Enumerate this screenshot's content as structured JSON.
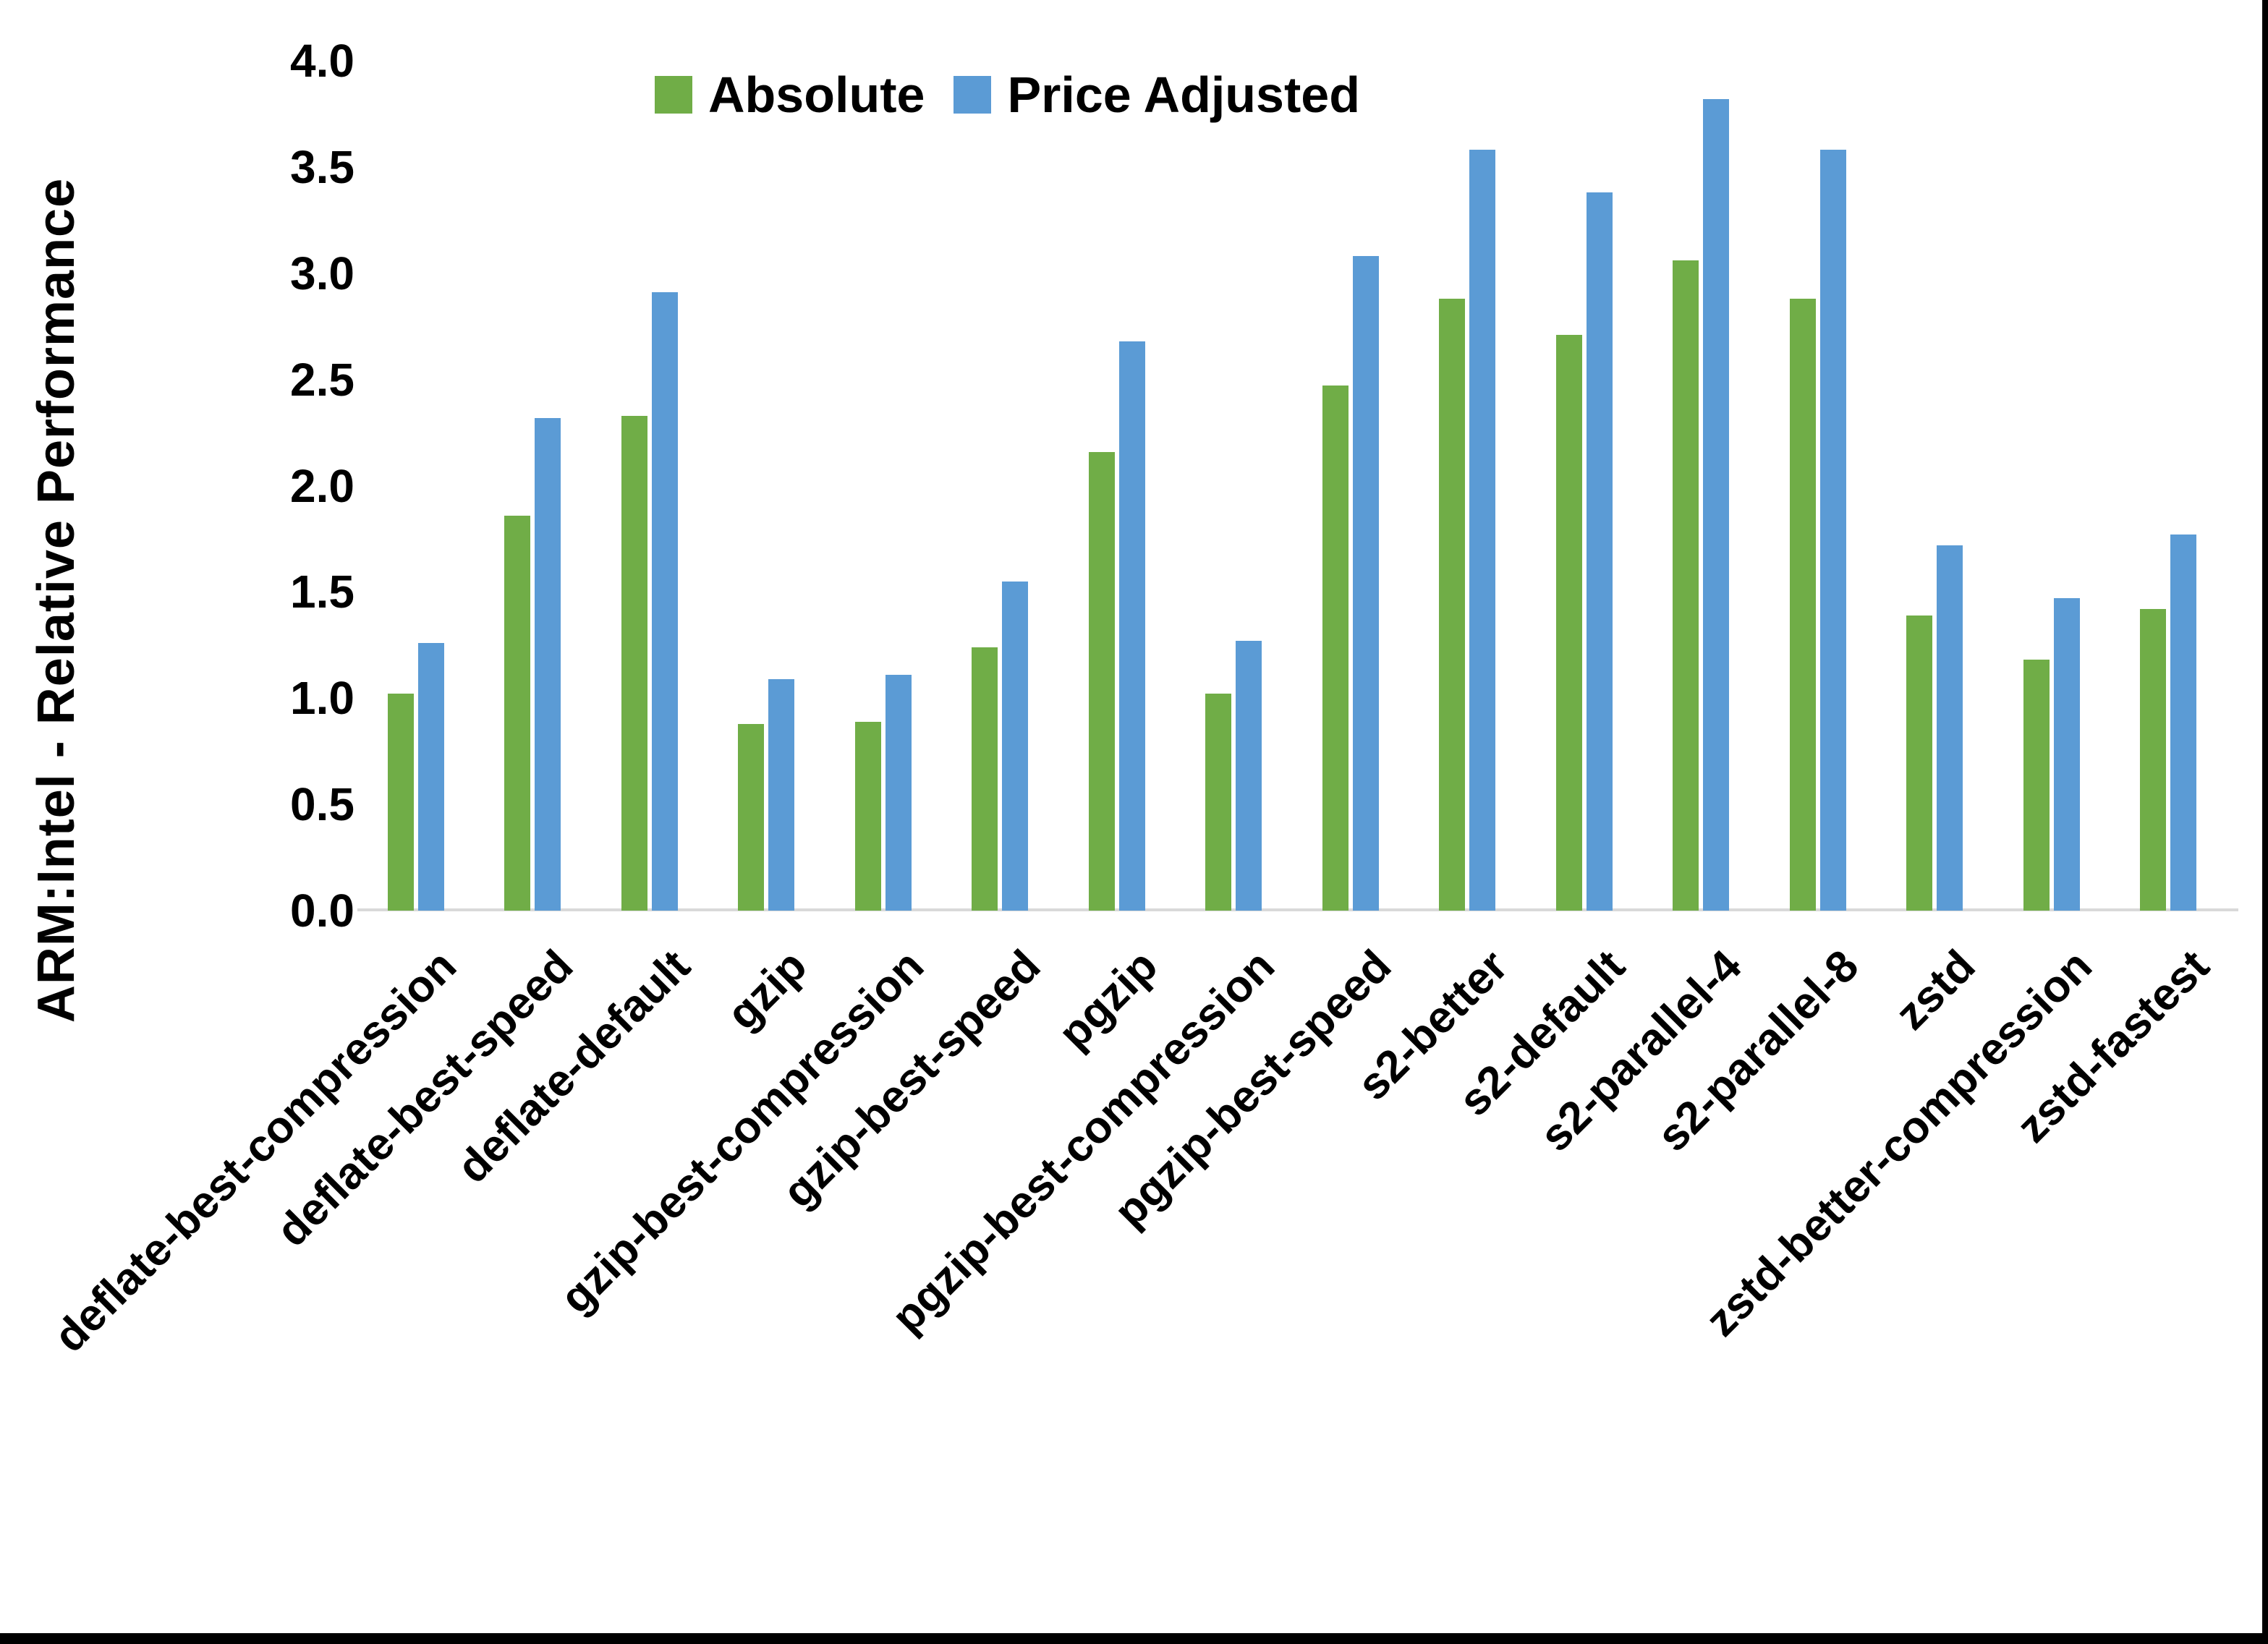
{
  "chart_data": {
    "type": "bar",
    "title": "",
    "xlabel": "",
    "ylabel": "ARM:Intel - Relative Performance",
    "ylim": [
      0,
      4
    ],
    "ytick_step": 0.5,
    "yticks": [
      "0.0",
      "0.5",
      "1.0",
      "1.5",
      "2.0",
      "2.5",
      "3.0",
      "3.5",
      "4.0"
    ],
    "grid": false,
    "legend_position": "top-center",
    "categories": [
      "deflate-best-compression",
      "deflate-best-speed",
      "deflate-default",
      "gzip",
      "gzip-best-compression",
      "gzip-best-speed",
      "pgzip",
      "pgzip-best-compression",
      "pgzip-best-speed",
      "s2-better",
      "s2-default",
      "s2-parallel-4",
      "s2-parallel-8",
      "zstd",
      "zstd-better-compression",
      "zstd-fastest"
    ],
    "series": [
      {
        "name": "Absolute",
        "color": "#70AD47",
        "values": [
          1.02,
          1.86,
          2.33,
          0.88,
          0.89,
          1.24,
          2.16,
          1.02,
          2.47,
          2.88,
          2.71,
          3.06,
          2.88,
          1.39,
          1.18,
          1.42
        ]
      },
      {
        "name": "Price Adjusted",
        "color": "#5B9BD5",
        "values": [
          1.26,
          2.32,
          2.91,
          1.09,
          1.11,
          1.55,
          2.68,
          1.27,
          3.08,
          3.58,
          3.38,
          3.82,
          3.58,
          1.72,
          1.47,
          1.77
        ]
      }
    ]
  },
  "legend": {
    "absolute_label": "Absolute",
    "price_adjusted_label": "Price Adjusted"
  },
  "axis": {
    "y_title": "ARM:Intel - Relative Performance"
  },
  "colors": {
    "absolute": "#70AD47",
    "price_adjusted": "#5B9BD5",
    "axis_line": "#d9d9d9",
    "frame": "#000000"
  }
}
